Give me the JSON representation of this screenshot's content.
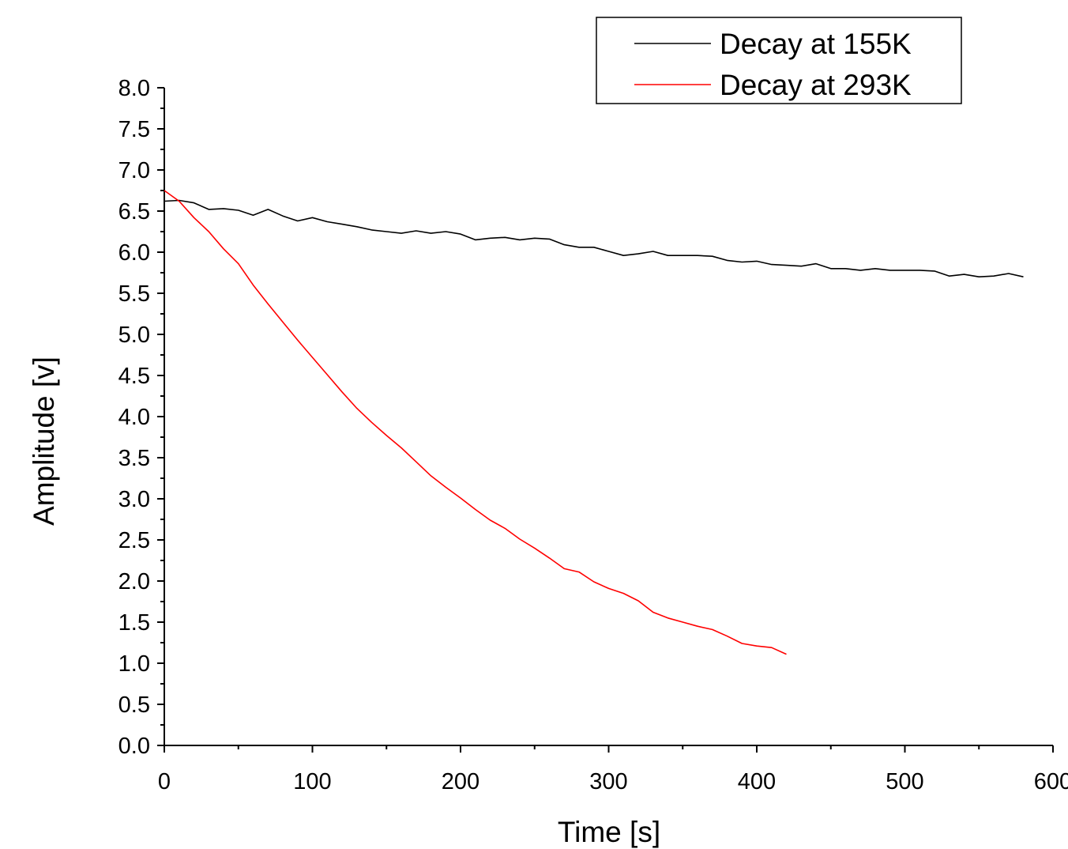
{
  "chart_data": {
    "type": "line",
    "xlabel": "Time [s]",
    "ylabel": "Amplitude [v]",
    "xlim": [
      0,
      600
    ],
    "ylim": [
      0,
      8
    ],
    "x_ticks": [
      "0",
      "100",
      "200",
      "300",
      "400",
      "500",
      "600"
    ],
    "y_ticks": [
      "0.0",
      "0.5",
      "1.0",
      "1.5",
      "2.0",
      "2.5",
      "3.0",
      "3.5",
      "4.0",
      "4.5",
      "5.0",
      "5.5",
      "6.0",
      "6.5",
      "7.0",
      "7.5",
      "8.0"
    ],
    "grid": false,
    "legend_position": "top-right",
    "series": [
      {
        "name": "Decay at 155K",
        "color": "#000000",
        "x": [
          0,
          10,
          20,
          30,
          40,
          50,
          60,
          70,
          80,
          90,
          100,
          110,
          120,
          130,
          140,
          150,
          160,
          170,
          180,
          190,
          200,
          210,
          220,
          230,
          240,
          250,
          260,
          270,
          280,
          290,
          300,
          310,
          320,
          330,
          340,
          350,
          360,
          370,
          380,
          390,
          400,
          410,
          420,
          430,
          440,
          450,
          460,
          470,
          480,
          490,
          500,
          510,
          520,
          530,
          540,
          550,
          560,
          570,
          580
        ],
        "y": [
          6.62,
          6.63,
          6.6,
          6.52,
          6.53,
          6.51,
          6.45,
          6.52,
          6.44,
          6.38,
          6.42,
          6.37,
          6.34,
          6.31,
          6.27,
          6.25,
          6.23,
          6.26,
          6.23,
          6.25,
          6.22,
          6.15,
          6.17,
          6.18,
          6.15,
          6.17,
          6.16,
          6.09,
          6.06,
          6.06,
          6.01,
          5.96,
          5.98,
          6.01,
          5.96,
          5.96,
          5.96,
          5.95,
          5.9,
          5.88,
          5.89,
          5.85,
          5.84,
          5.83,
          5.86,
          5.8,
          5.8,
          5.78,
          5.8,
          5.78,
          5.78,
          5.78,
          5.77,
          5.71,
          5.73,
          5.7,
          5.71,
          5.74,
          5.7
        ]
      },
      {
        "name": "Decay at 293K",
        "color": "#ff0000",
        "x": [
          0,
          10,
          20,
          30,
          40,
          50,
          60,
          70,
          80,
          90,
          100,
          110,
          120,
          130,
          140,
          150,
          160,
          170,
          180,
          190,
          200,
          210,
          220,
          230,
          240,
          250,
          260,
          270,
          280,
          290,
          300,
          310,
          320,
          330,
          340,
          350,
          360,
          370,
          380,
          390,
          400,
          410,
          420
        ],
        "y": [
          6.75,
          6.62,
          6.42,
          6.25,
          6.04,
          5.86,
          5.6,
          5.37,
          5.15,
          4.93,
          4.72,
          4.51,
          4.3,
          4.1,
          3.93,
          3.77,
          3.62,
          3.45,
          3.28,
          3.14,
          3.01,
          2.87,
          2.74,
          2.64,
          2.51,
          2.4,
          2.28,
          2.15,
          2.11,
          1.99,
          1.91,
          1.85,
          1.76,
          1.62,
          1.55,
          1.5,
          1.45,
          1.41,
          1.33,
          1.24,
          1.21,
          1.19,
          1.11
        ]
      }
    ]
  }
}
